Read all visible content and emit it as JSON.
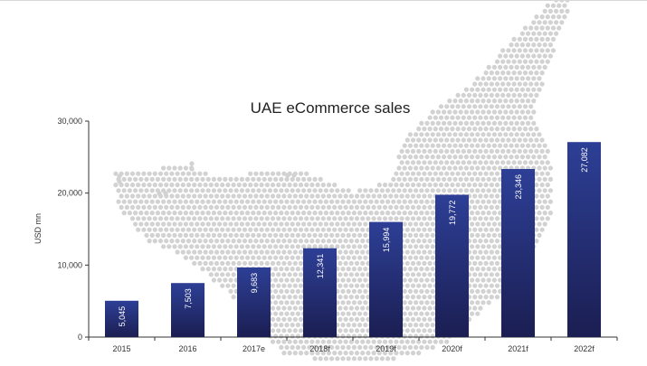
{
  "chart_data": {
    "type": "bar",
    "title": "UAE eCommerce sales",
    "xlabel": "",
    "ylabel": "USD mn",
    "categories": [
      "2015",
      "2016",
      "2017e",
      "2018f",
      "2019f",
      "2020f",
      "2021f",
      "2022f"
    ],
    "values": [
      5045,
      7503,
      9683,
      12341,
      15994,
      19772,
      23346,
      27082
    ],
    "value_labels": [
      "5,045",
      "7,503",
      "9,683",
      "12,341",
      "15,994",
      "19,772",
      "23,346",
      "27,082"
    ],
    "yticks": [
      0,
      10000,
      20000,
      30000
    ],
    "ytick_labels": [
      "0",
      "10,000",
      "20,000",
      "30,000"
    ],
    "ylim": [
      0,
      30000
    ],
    "grid": false,
    "legend": "none",
    "colors": {
      "bar_top": "#2d3f96",
      "bar_bottom": "#1b1e52",
      "map_dots": "#d2d2d2",
      "axis": "#333333",
      "label_text": "#ffffff"
    }
  }
}
